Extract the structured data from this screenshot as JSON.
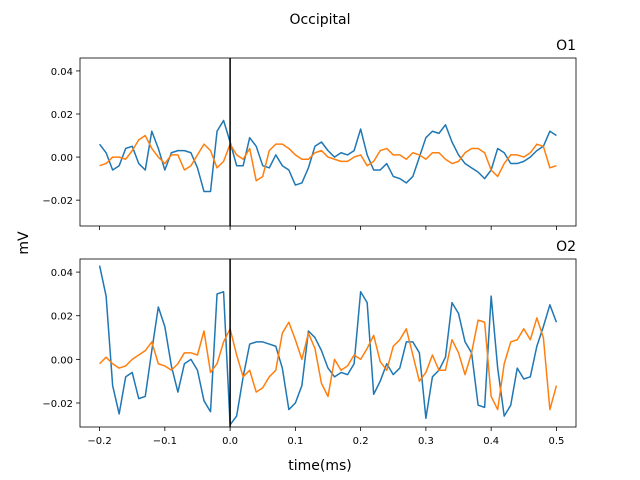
{
  "figure": {
    "suptitle": "Occipital",
    "xlabel": "time(ms)",
    "ylabel": "mV"
  },
  "colors": {
    "series_blue": "#1f77b4",
    "series_orange": "#ff7f0e",
    "event_line": "#000000"
  },
  "chart_data": [
    {
      "type": "line",
      "title": "O1",
      "xlim": [
        -0.23,
        0.53
      ],
      "ylim": [
        -0.032,
        0.046
      ],
      "yticks": [
        0.04,
        0.02,
        0.0,
        -0.02
      ],
      "ytick_labels": [
        "0.04",
        "0.02",
        "0.00",
        "−0.02"
      ],
      "xticks": [
        -0.2,
        -0.1,
        0.0,
        0.1,
        0.2,
        0.3,
        0.4,
        0.5
      ],
      "xtick_labels": [],
      "vline": 0.0,
      "grid": false,
      "x": [
        -0.2,
        -0.19,
        -0.18,
        -0.17,
        -0.16,
        -0.15,
        -0.14,
        -0.13,
        -0.12,
        -0.11,
        -0.1,
        -0.09,
        -0.08,
        -0.07,
        -0.06,
        -0.05,
        -0.04,
        -0.03,
        -0.02,
        -0.01,
        0.0,
        0.01,
        0.02,
        0.03,
        0.04,
        0.05,
        0.06,
        0.07,
        0.08,
        0.09,
        0.1,
        0.11,
        0.12,
        0.13,
        0.14,
        0.15,
        0.16,
        0.17,
        0.18,
        0.19,
        0.2,
        0.21,
        0.22,
        0.23,
        0.24,
        0.25,
        0.26,
        0.27,
        0.28,
        0.29,
        0.3,
        0.31,
        0.32,
        0.33,
        0.34,
        0.35,
        0.36,
        0.37,
        0.38,
        0.39,
        0.4,
        0.41,
        0.42,
        0.43,
        0.44,
        0.45,
        0.46,
        0.47,
        0.48,
        0.49,
        0.5
      ],
      "series": [
        {
          "color": "#1f77b4",
          "values": [
            0.006,
            0.002,
            -0.006,
            -0.004,
            0.004,
            0.005,
            -0.003,
            -0.006,
            0.012,
            0.004,
            -0.006,
            0.002,
            0.003,
            0.003,
            0.002,
            -0.005,
            -0.016,
            -0.016,
            0.012,
            0.017,
            0.007,
            -0.004,
            -0.004,
            0.009,
            0.005,
            -0.004,
            -0.005,
            0.001,
            -0.004,
            -0.006,
            -0.013,
            -0.012,
            -0.005,
            0.005,
            0.007,
            0.003,
            0.0,
            0.002,
            0.001,
            0.003,
            0.013,
            0.001,
            -0.006,
            -0.006,
            -0.003,
            -0.009,
            -0.01,
            -0.012,
            -0.009,
            0.0,
            0.009,
            0.012,
            0.011,
            0.015,
            0.007,
            0.001,
            -0.003,
            -0.005,
            -0.007,
            -0.01,
            -0.006,
            0.004,
            0.002,
            -0.003,
            -0.003,
            -0.002,
            0.0,
            0.003,
            0.005,
            0.012,
            0.01
          ]
        },
        {
          "color": "#ff7f0e",
          "values": [
            -0.004,
            -0.003,
            0.0,
            0.0,
            -0.001,
            0.003,
            0.008,
            0.01,
            0.004,
            0.0,
            -0.003,
            0.001,
            0.001,
            -0.006,
            -0.004,
            0.001,
            0.006,
            0.003,
            -0.005,
            -0.002,
            0.006,
            0.001,
            -0.001,
            0.004,
            -0.011,
            -0.009,
            0.003,
            0.006,
            0.006,
            0.004,
            0.001,
            -0.001,
            -0.001,
            0.002,
            0.003,
            0.0,
            -0.001,
            -0.002,
            -0.002,
            0.0,
            0.001,
            -0.004,
            -0.002,
            0.003,
            0.004,
            0.001,
            0.001,
            -0.001,
            0.002,
            0.001,
            -0.001,
            0.002,
            0.002,
            -0.001,
            -0.003,
            -0.002,
            0.002,
            0.004,
            0.004,
            0.002,
            -0.006,
            -0.009,
            -0.003,
            0.001,
            0.001,
            0.0,
            0.002,
            0.006,
            0.005,
            -0.005,
            -0.004
          ]
        }
      ]
    },
    {
      "type": "line",
      "title": "O2",
      "xlim": [
        -0.23,
        0.53
      ],
      "ylim": [
        -0.031,
        0.046
      ],
      "yticks": [
        0.04,
        0.02,
        0.0,
        -0.02
      ],
      "ytick_labels": [
        "0.04",
        "0.02",
        "0.00",
        "−0.02"
      ],
      "xticks": [
        -0.2,
        -0.1,
        0.0,
        0.1,
        0.2,
        0.3,
        0.4,
        0.5
      ],
      "xtick_labels": [
        "−0.2",
        "−0.1",
        "0.0",
        "0.1",
        "0.2",
        "0.3",
        "0.4",
        "0.5"
      ],
      "vline": 0.0,
      "grid": false,
      "x": [
        -0.2,
        -0.19,
        -0.18,
        -0.17,
        -0.16,
        -0.15,
        -0.14,
        -0.13,
        -0.12,
        -0.11,
        -0.1,
        -0.09,
        -0.08,
        -0.07,
        -0.06,
        -0.05,
        -0.04,
        -0.03,
        -0.02,
        -0.01,
        0.0,
        0.01,
        0.02,
        0.03,
        0.04,
        0.05,
        0.06,
        0.07,
        0.08,
        0.09,
        0.1,
        0.11,
        0.12,
        0.13,
        0.14,
        0.15,
        0.16,
        0.17,
        0.18,
        0.19,
        0.2,
        0.21,
        0.22,
        0.23,
        0.24,
        0.25,
        0.26,
        0.27,
        0.28,
        0.29,
        0.3,
        0.31,
        0.32,
        0.33,
        0.34,
        0.35,
        0.36,
        0.37,
        0.38,
        0.39,
        0.4,
        0.41,
        0.42,
        0.43,
        0.44,
        0.45,
        0.46,
        0.47,
        0.48,
        0.49,
        0.5
      ],
      "series": [
        {
          "color": "#1f77b4",
          "values": [
            0.043,
            0.029,
            -0.012,
            -0.025,
            -0.008,
            -0.006,
            -0.018,
            -0.017,
            0.004,
            0.024,
            0.015,
            -0.003,
            -0.015,
            -0.002,
            0.0,
            -0.005,
            -0.019,
            -0.024,
            0.03,
            0.031,
            -0.03,
            -0.026,
            -0.008,
            0.007,
            0.008,
            0.008,
            0.007,
            0.006,
            -0.004,
            -0.023,
            -0.02,
            -0.012,
            0.013,
            0.01,
            0.004,
            -0.004,
            -0.008,
            -0.006,
            -0.007,
            -0.002,
            0.031,
            0.026,
            -0.016,
            -0.01,
            -0.002,
            -0.007,
            -0.004,
            0.008,
            0.008,
            0.003,
            -0.027,
            -0.008,
            -0.005,
            0.001,
            0.026,
            0.021,
            0.008,
            0.003,
            -0.021,
            -0.022,
            0.029,
            -0.004,
            -0.026,
            -0.021,
            -0.004,
            -0.009,
            -0.008,
            0.006,
            0.015,
            0.025,
            0.017
          ]
        },
        {
          "color": "#ff7f0e",
          "values": [
            -0.002,
            0.001,
            -0.002,
            -0.004,
            -0.003,
            0.0,
            0.002,
            0.004,
            0.008,
            -0.002,
            -0.003,
            -0.005,
            -0.002,
            0.003,
            0.003,
            0.002,
            0.013,
            -0.006,
            -0.002,
            0.008,
            0.014,
            0.002,
            -0.008,
            -0.005,
            -0.015,
            -0.013,
            -0.008,
            -0.005,
            0.012,
            0.017,
            0.009,
            0.0,
            0.012,
            0.005,
            -0.011,
            -0.017,
            0.0,
            -0.005,
            -0.003,
            0.002,
            0.0,
            0.005,
            0.011,
            -0.001,
            -0.005,
            0.006,
            0.009,
            0.014,
            0.002,
            -0.01,
            -0.006,
            0.002,
            -0.005,
            -0.005,
            0.009,
            0.003,
            -0.007,
            0.003,
            0.018,
            0.017,
            -0.017,
            -0.023,
            -0.002,
            0.008,
            0.009,
            0.014,
            0.009,
            0.019,
            0.01,
            -0.023,
            -0.012
          ]
        }
      ]
    }
  ]
}
